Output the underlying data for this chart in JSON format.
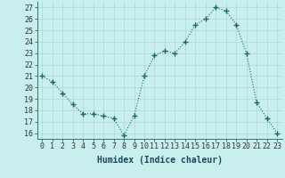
{
  "x": [
    0,
    1,
    2,
    3,
    4,
    5,
    6,
    7,
    8,
    9,
    10,
    11,
    12,
    13,
    14,
    15,
    16,
    17,
    18,
    19,
    20,
    21,
    22,
    23
  ],
  "y": [
    21,
    20.5,
    19.5,
    18.5,
    17.7,
    17.7,
    17.5,
    17.3,
    15.8,
    17.5,
    21,
    22.8,
    23.2,
    23,
    24,
    25.5,
    26,
    27,
    26.7,
    25.5,
    23,
    18.7,
    17.3,
    16
  ],
  "line_color": "#1a6b5a",
  "marker": "+",
  "marker_size": 4,
  "bg_color": "#c8eeee",
  "grid_color": "#aad8d4",
  "xlabel": "Humidex (Indice chaleur)",
  "xlabel_fontsize": 7,
  "xlim": [
    -0.5,
    23.5
  ],
  "ylim": [
    15.5,
    27.5
  ],
  "xtick_labels": [
    "0",
    "1",
    "2",
    "3",
    "4",
    "5",
    "6",
    "7",
    "8",
    "9",
    "10",
    "11",
    "12",
    "13",
    "14",
    "15",
    "16",
    "17",
    "18",
    "19",
    "20",
    "21",
    "22",
    "23"
  ],
  "ytick_values": [
    16,
    17,
    18,
    19,
    20,
    21,
    22,
    23,
    24,
    25,
    26,
    27
  ],
  "tick_fontsize": 6,
  "lw": 0.8,
  "spine_color": "#2a7a6a"
}
